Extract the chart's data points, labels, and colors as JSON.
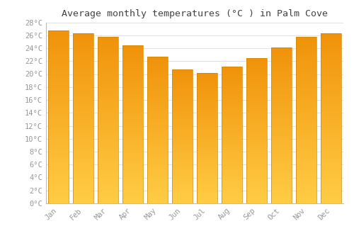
{
  "months": [
    "Jan",
    "Feb",
    "Mar",
    "Apr",
    "May",
    "Jun",
    "Jul",
    "Aug",
    "Sep",
    "Oct",
    "Nov",
    "Dec"
  ],
  "values": [
    26.7,
    26.3,
    25.7,
    24.4,
    22.7,
    20.7,
    20.2,
    21.1,
    22.5,
    24.1,
    25.7,
    26.3
  ],
  "bar_color_bottom": "#FFCC44",
  "bar_color_top": "#F0920A",
  "bar_color_edge": "#CC8800",
  "background_color": "#FFFFFF",
  "grid_color": "#DDDDDD",
  "title": "Average monthly temperatures (°C ) in Palm Cove",
  "title_fontsize": 9.5,
  "tick_label_color": "#999999",
  "tick_fontsize": 7.5,
  "ylim": [
    0,
    28
  ],
  "yticks": [
    0,
    2,
    4,
    6,
    8,
    10,
    12,
    14,
    16,
    18,
    20,
    22,
    24,
    26,
    28
  ],
  "bar_width": 0.82,
  "figsize": [
    5.0,
    3.5
  ],
  "dpi": 100
}
